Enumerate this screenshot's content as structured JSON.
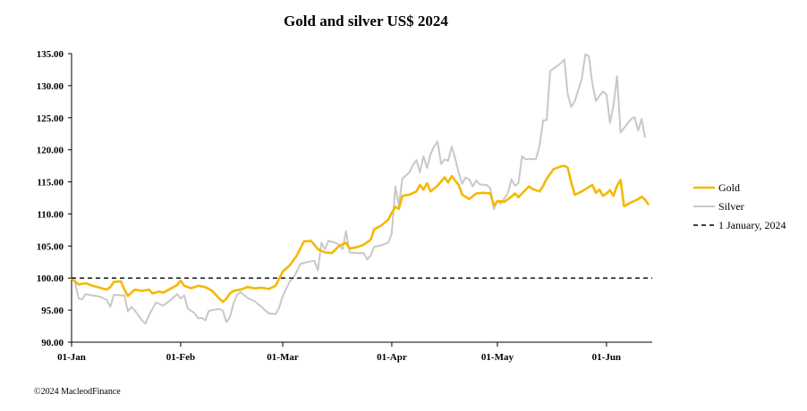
{
  "chart_data": {
    "type": "line",
    "title": "Gold and silver  US$ 2024",
    "xlabel": "",
    "ylabel": "",
    "ylim": [
      90,
      135
    ],
    "yticks": [
      "90.00",
      "95.00",
      "100.00",
      "105.00",
      "110.00",
      "115.00",
      "120.00",
      "125.00",
      "130.00",
      "135.00"
    ],
    "ytick_values": [
      90,
      95,
      100,
      105,
      110,
      115,
      120,
      125,
      130,
      135
    ],
    "xlim_days": [
      0,
      165
    ],
    "xticks": [
      {
        "label": "01-Jan",
        "day": 0
      },
      {
        "label": "01-Feb",
        "day": 31
      },
      {
        "label": "01-Mar",
        "day": 60
      },
      {
        "label": "01-Apr",
        "day": 91
      },
      {
        "label": "01-May",
        "day": 121
      },
      {
        "label": "01-Jun",
        "day": 152
      }
    ],
    "grid": false,
    "legend_position": "right",
    "series": [
      {
        "name": "Gold",
        "color": "#F5B800",
        "style": "solid",
        "points": [
          [
            0,
            100
          ],
          [
            2,
            99
          ],
          [
            4,
            99.2
          ],
          [
            6,
            98.8
          ],
          [
            8,
            98.5
          ],
          [
            10,
            98.2
          ],
          [
            11,
            98.6
          ],
          [
            12,
            99.4
          ],
          [
            14,
            99.5
          ],
          [
            15,
            98.2
          ],
          [
            16,
            97.2
          ],
          [
            18,
            98.2
          ],
          [
            20,
            98
          ],
          [
            22,
            98.2
          ],
          [
            23,
            97.6
          ],
          [
            25,
            97.9
          ],
          [
            26,
            97.7
          ],
          [
            28,
            98.3
          ],
          [
            30,
            98.9
          ],
          [
            31,
            99.6
          ],
          [
            32,
            98.8
          ],
          [
            34,
            98.4
          ],
          [
            36,
            98.8
          ],
          [
            38,
            98.6
          ],
          [
            40,
            98
          ],
          [
            42,
            96.8
          ],
          [
            43,
            96.3
          ],
          [
            44,
            96.8
          ],
          [
            45,
            97.6
          ],
          [
            46,
            98
          ],
          [
            48,
            98.2
          ],
          [
            50,
            98.6
          ],
          [
            52,
            98.4
          ],
          [
            54,
            98.5
          ],
          [
            56,
            98.3
          ],
          [
            58,
            98.8
          ],
          [
            60,
            101
          ],
          [
            62,
            102
          ],
          [
            64,
            103.5
          ],
          [
            66,
            105.7
          ],
          [
            68,
            105.8
          ],
          [
            69,
            105.2
          ],
          [
            70,
            104.5
          ],
          [
            72,
            104
          ],
          [
            74,
            103.9
          ],
          [
            76,
            105
          ],
          [
            78,
            105.5
          ],
          [
            79,
            104.6
          ],
          [
            81,
            104.8
          ],
          [
            83,
            105.2
          ],
          [
            85,
            106
          ],
          [
            86,
            107.6
          ],
          [
            88,
            108.2
          ],
          [
            90,
            109.1
          ],
          [
            91,
            110.2
          ],
          [
            92,
            111.1
          ],
          [
            93,
            110.8
          ],
          [
            94,
            112.8
          ],
          [
            96,
            113
          ],
          [
            98,
            113.5
          ],
          [
            99,
            114.5
          ],
          [
            100,
            113.8
          ],
          [
            101,
            114.8
          ],
          [
            102,
            113.5
          ],
          [
            104,
            114.4
          ],
          [
            106,
            115.7
          ],
          [
            107,
            114.9
          ],
          [
            108,
            115.9
          ],
          [
            110,
            114.5
          ],
          [
            111,
            113
          ],
          [
            113,
            112.3
          ],
          [
            115,
            113.2
          ],
          [
            117,
            113.3
          ],
          [
            119,
            113.2
          ],
          [
            120,
            111.3
          ],
          [
            121,
            112
          ],
          [
            123,
            111.9
          ],
          [
            125,
            112.7
          ],
          [
            126,
            113.2
          ],
          [
            127,
            112.6
          ],
          [
            128,
            113.2
          ],
          [
            130,
            114.3
          ],
          [
            131,
            113.9
          ],
          [
            133,
            113.5
          ],
          [
            134,
            114.4
          ],
          [
            135,
            115.5
          ],
          [
            137,
            117
          ],
          [
            139,
            117.4
          ],
          [
            140,
            117.5
          ],
          [
            141,
            117.2
          ],
          [
            142,
            114.9
          ],
          [
            143,
            113
          ],
          [
            145,
            113.5
          ],
          [
            147,
            114.2
          ],
          [
            148,
            114.5
          ],
          [
            149,
            113.3
          ],
          [
            150,
            113.8
          ],
          [
            151,
            112.8
          ],
          [
            152,
            113.2
          ],
          [
            153,
            113.7
          ],
          [
            154,
            112.8
          ],
          [
            155,
            114.4
          ],
          [
            156,
            115.3
          ],
          [
            157,
            111.2
          ],
          [
            159,
            111.8
          ],
          [
            161,
            112.3
          ],
          [
            162,
            112.7
          ],
          [
            163,
            112.2
          ],
          [
            164,
            111.4
          ]
        ]
      },
      {
        "name": "Silver",
        "color": "#C8C8C8",
        "style": "solid",
        "points": [
          [
            0,
            100
          ],
          [
            1,
            99.3
          ],
          [
            2,
            96.8
          ],
          [
            3,
            96.7
          ],
          [
            4,
            97.5
          ],
          [
            6,
            97.3
          ],
          [
            8,
            97.1
          ],
          [
            10,
            96.6
          ],
          [
            11,
            95.5
          ],
          [
            12,
            97.4
          ],
          [
            14,
            97.3
          ],
          [
            15,
            97.3
          ],
          [
            16,
            94.8
          ],
          [
            17,
            95.5
          ],
          [
            18,
            94.9
          ],
          [
            19,
            94.2
          ],
          [
            20,
            93.4
          ],
          [
            21,
            92.9
          ],
          [
            22,
            94.2
          ],
          [
            24,
            96.2
          ],
          [
            26,
            95.7
          ],
          [
            28,
            96.5
          ],
          [
            30,
            97.5
          ],
          [
            31,
            96.8
          ],
          [
            32,
            97.3
          ],
          [
            33,
            95.3
          ],
          [
            35,
            94.5
          ],
          [
            36,
            93.7
          ],
          [
            37,
            93.8
          ],
          [
            38,
            93.4
          ],
          [
            39,
            94.9
          ],
          [
            42,
            95.2
          ],
          [
            43,
            94.9
          ],
          [
            44,
            93.1
          ],
          [
            45,
            93.9
          ],
          [
            46,
            96
          ],
          [
            47,
            97.4
          ],
          [
            48,
            97.8
          ],
          [
            50,
            96.9
          ],
          [
            52,
            96.4
          ],
          [
            54,
            95.5
          ],
          [
            56,
            94.5
          ],
          [
            58,
            94.4
          ],
          [
            59,
            95.4
          ],
          [
            60,
            97.2
          ],
          [
            62,
            99.5
          ],
          [
            63,
            100
          ],
          [
            64,
            101
          ],
          [
            65,
            102.2
          ],
          [
            67,
            102.5
          ],
          [
            69,
            102.7
          ],
          [
            70,
            101.2
          ],
          [
            71,
            105.5
          ],
          [
            72,
            104.5
          ],
          [
            73,
            105.8
          ],
          [
            75,
            105.5
          ],
          [
            76,
            105.2
          ],
          [
            77,
            104.5
          ],
          [
            78,
            107.3
          ],
          [
            79,
            104
          ],
          [
            81,
            103.9
          ],
          [
            83,
            103.9
          ],
          [
            84,
            102.9
          ],
          [
            85,
            103.5
          ],
          [
            86,
            104.9
          ],
          [
            88,
            105.1
          ],
          [
            90,
            105.5
          ],
          [
            91,
            107
          ],
          [
            92,
            114.3
          ],
          [
            93,
            111.3
          ],
          [
            94,
            115.5
          ],
          [
            96,
            116.5
          ],
          [
            97,
            117.6
          ],
          [
            98,
            118.4
          ],
          [
            99,
            116.5
          ],
          [
            100,
            119
          ],
          [
            101,
            117.2
          ],
          [
            102,
            119.3
          ],
          [
            103,
            120.5
          ],
          [
            104,
            121.3
          ],
          [
            105,
            117.8
          ],
          [
            106,
            118.5
          ],
          [
            107,
            118.3
          ],
          [
            108,
            120.5
          ],
          [
            109,
            118.7
          ],
          [
            110,
            116.4
          ],
          [
            111,
            114.7
          ],
          [
            112,
            115.7
          ],
          [
            113,
            115.4
          ],
          [
            114,
            114.3
          ],
          [
            115,
            115.2
          ],
          [
            116,
            114.6
          ],
          [
            118,
            114.5
          ],
          [
            119,
            114
          ],
          [
            120,
            110.7
          ],
          [
            121,
            112
          ],
          [
            122,
            111.6
          ],
          [
            124,
            113.3
          ],
          [
            125,
            115.4
          ],
          [
            126,
            114.4
          ],
          [
            127,
            114.8
          ],
          [
            128,
            119
          ],
          [
            129,
            118.5
          ],
          [
            130,
            118.6
          ],
          [
            131,
            118.5
          ],
          [
            132,
            118.6
          ],
          [
            133,
            120.7
          ],
          [
            134,
            124.6
          ],
          [
            135,
            124.6
          ],
          [
            136,
            132.3
          ],
          [
            139,
            133.5
          ],
          [
            140,
            134.1
          ],
          [
            141,
            128.6
          ],
          [
            142,
            126.7
          ],
          [
            143,
            127.6
          ],
          [
            145,
            131.1
          ],
          [
            146,
            134.9
          ],
          [
            147,
            134.6
          ],
          [
            148,
            130.3
          ],
          [
            149,
            127.6
          ],
          [
            150,
            128.4
          ],
          [
            151,
            129.1
          ],
          [
            152,
            128.6
          ],
          [
            153,
            124.2
          ],
          [
            154,
            126.9
          ],
          [
            155,
            131.5
          ],
          [
            156,
            122.7
          ],
          [
            157,
            123.4
          ],
          [
            159,
            124.8
          ],
          [
            160,
            125.1
          ],
          [
            161,
            123
          ],
          [
            162,
            124.8
          ],
          [
            163,
            121.9
          ]
        ]
      },
      {
        "name": "1 January, 2024",
        "color": "#000000",
        "style": "dashed",
        "points": [
          [
            0,
            100
          ],
          [
            165,
            100
          ]
        ]
      }
    ],
    "copyright": "©2024 MacleodFinance"
  }
}
